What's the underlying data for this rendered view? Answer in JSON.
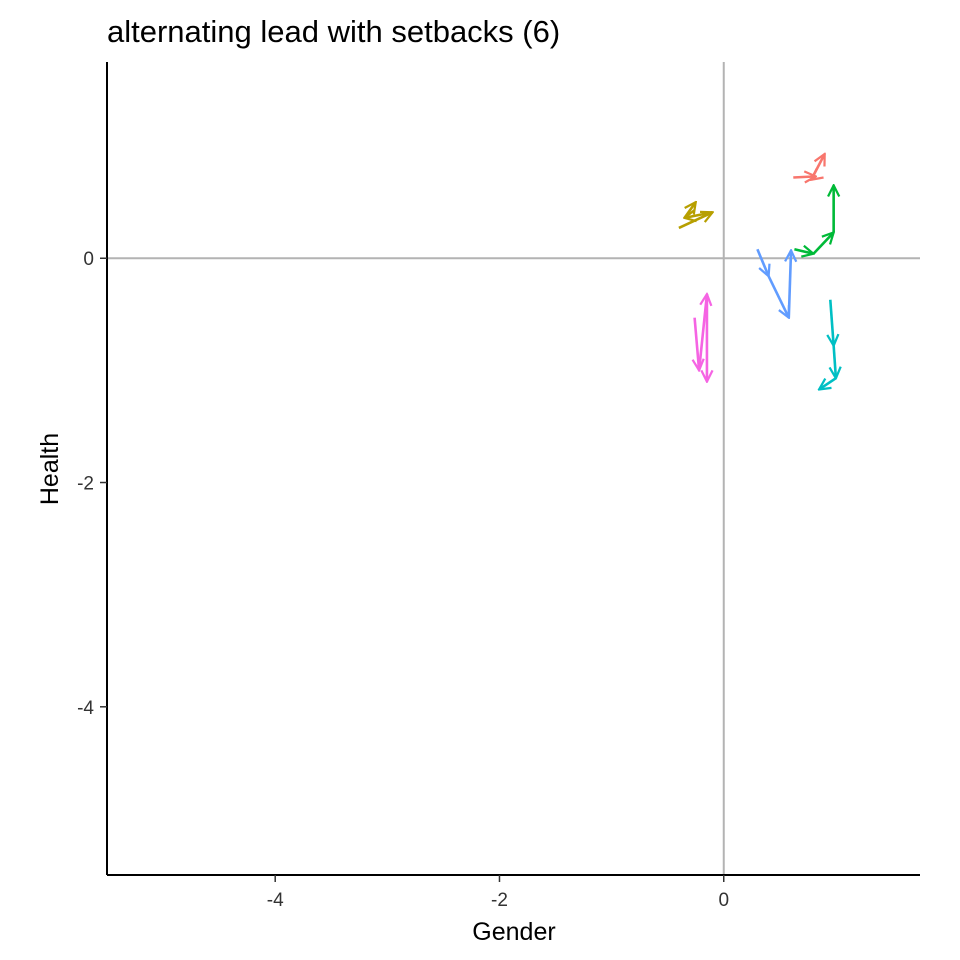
{
  "chart_data": {
    "type": "line",
    "title": "alternating lead with setbacks (6)",
    "xlabel": "Gender",
    "ylabel": "Health",
    "xlim": [
      -5.5,
      1.75
    ],
    "ylim": [
      -5.5,
      1.75
    ],
    "xticks": [
      -4,
      -2,
      0
    ],
    "yticks": [
      -4,
      -2,
      0
    ],
    "reference_lines": {
      "x": 0,
      "y": 0,
      "color": "#b3b3b3"
    },
    "legend": "none",
    "grid": false,
    "series": [
      {
        "color": "#F8766D",
        "points": [
          [
            0.62,
            0.72
          ],
          [
            0.82,
            0.73
          ],
          [
            0.78,
            0.7
          ],
          [
            0.9,
            0.93
          ]
        ]
      },
      {
        "color": "#B79F00",
        "points": [
          [
            -0.4,
            0.27
          ],
          [
            -0.1,
            0.41
          ],
          [
            -0.35,
            0.36
          ],
          [
            -0.25,
            0.5
          ]
        ]
      },
      {
        "color": "#00BA38",
        "points": [
          [
            0.63,
            0.08
          ],
          [
            0.8,
            0.04
          ],
          [
            0.98,
            0.23
          ],
          [
            0.98,
            0.65
          ]
        ]
      },
      {
        "color": "#00BFC4",
        "points": [
          [
            0.95,
            -0.37
          ],
          [
            0.98,
            -0.78
          ],
          [
            1.0,
            -1.07
          ],
          [
            0.85,
            -1.17
          ]
        ]
      },
      {
        "color": "#619CFF",
        "points": [
          [
            0.3,
            0.08
          ],
          [
            0.4,
            -0.16
          ],
          [
            0.58,
            -0.53
          ],
          [
            0.6,
            0.07
          ]
        ]
      },
      {
        "color": "#F564E3",
        "points": [
          [
            -0.26,
            -0.53
          ],
          [
            -0.22,
            -1.0
          ],
          [
            -0.15,
            -0.32
          ],
          [
            -0.15,
            -1.1
          ]
        ]
      }
    ]
  }
}
